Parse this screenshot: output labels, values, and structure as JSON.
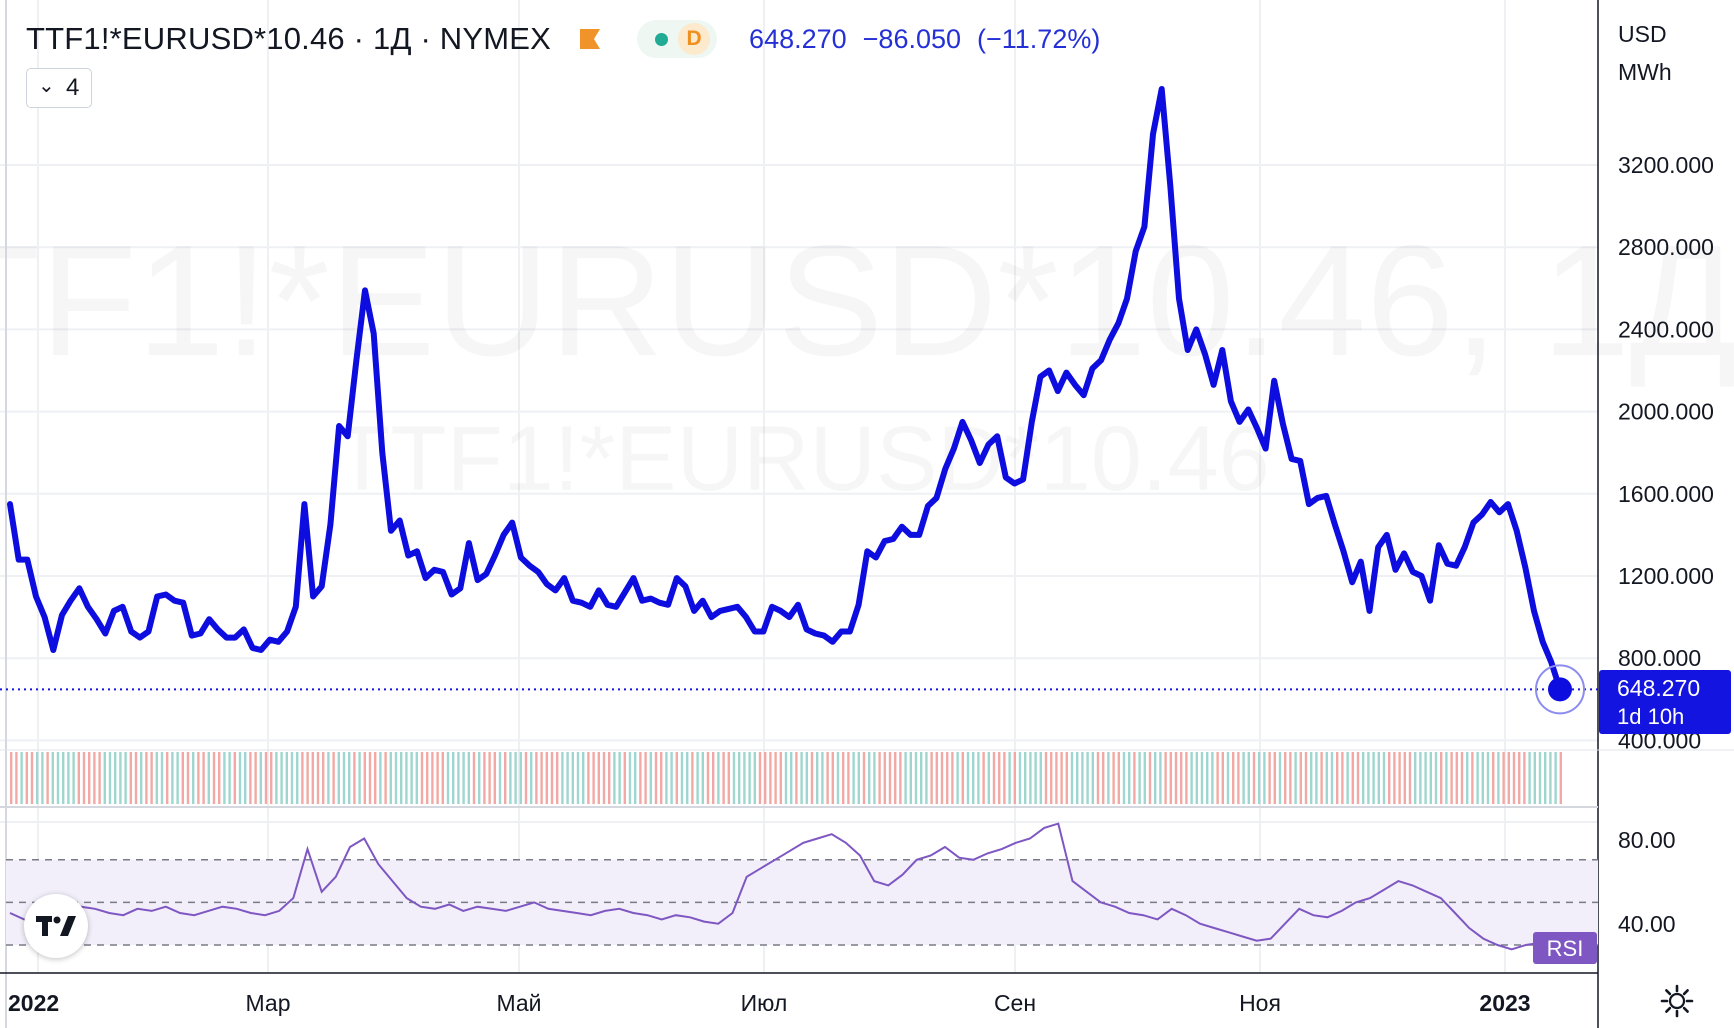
{
  "header": {
    "symbol": "TTF1!*EURUSD*10.46 · 1Д · NYMEX",
    "last": "648.270",
    "change": "−86.050",
    "change_pct": "(−11.72%)",
    "timeframe_badge": "D",
    "collapse_count": "4"
  },
  "watermark": {
    "large": "TTF1!*EURUSD*10.46, 1Д",
    "small": "TTF1!*EURUSD*10.46"
  },
  "price_axis": {
    "unit_lines": [
      "USD",
      "MWh"
    ],
    "ticks": [
      "3200.000",
      "2800.000",
      "2400.000",
      "2000.000",
      "1600.000",
      "1200.000",
      "800.000",
      "400.000"
    ],
    "last_label": "648.270",
    "countdown": "1d 10h"
  },
  "rsi_axis": {
    "ticks": [
      "80.00",
      "40.00"
    ],
    "badge": "RSI"
  },
  "time_axis": {
    "labels": [
      "2022",
      "Мар",
      "Май",
      "Июл",
      "Сен",
      "Ноя",
      "2023"
    ]
  },
  "colors": {
    "price_line": "#0d0ddf",
    "rsi_line": "#7e57c2",
    "rsi_band": "#f2effa",
    "volume_up": "#9fd6cf",
    "volume_down": "#f2a9a5",
    "last_price_badge": "#1414e0",
    "rsi_badge": "#7e57c2"
  },
  "icons": [
    "tradingview-logo-icon",
    "flag-icon",
    "chevron-down-icon",
    "settings-gear-icon"
  ],
  "chart_data": [
    {
      "type": "line",
      "title": "TTF1!*EURUSD*10.46 · 1Д · NYMEX",
      "ylabel": "USD MWh",
      "ylim": [
        350,
        3750
      ],
      "x_range": [
        "2022-01-03",
        "2023-01-05"
      ],
      "x_labels": [
        "2022",
        "Мар",
        "Май",
        "Июл",
        "Сен",
        "Ноя",
        "2023"
      ],
      "grid": true,
      "series": [
        {
          "points": [
            [
              "2022-01-03",
              1550
            ],
            [
              "2022-01-04",
              1280
            ],
            [
              "2022-01-05",
              1280
            ],
            [
              "2022-01-07",
              1100
            ],
            [
              "2022-01-09",
              1000
            ],
            [
              "2022-01-11",
              840
            ],
            [
              "2022-01-14",
              1010
            ],
            [
              "2022-01-17",
              1080
            ],
            [
              "2022-01-20",
              1140
            ],
            [
              "2022-01-22",
              1050
            ],
            [
              "2022-01-25",
              990
            ],
            [
              "2022-01-27",
              920
            ],
            [
              "2022-01-29",
              1030
            ],
            [
              "2022-01-31",
              1050
            ],
            [
              "2022-02-02",
              930
            ],
            [
              "2022-02-04",
              900
            ],
            [
              "2022-02-06",
              930
            ],
            [
              "2022-02-09",
              1100
            ],
            [
              "2022-02-11",
              1110
            ],
            [
              "2022-02-13",
              1080
            ],
            [
              "2022-02-16",
              1070
            ],
            [
              "2022-02-19",
              910
            ],
            [
              "2022-02-21",
              920
            ],
            [
              "2022-02-24",
              990
            ],
            [
              "2022-02-27",
              940
            ],
            [
              "2022-03-02",
              900
            ],
            [
              "2022-03-04",
              900
            ],
            [
              "2022-03-06",
              940
            ],
            [
              "2022-03-08",
              850
            ],
            [
              "2022-03-10",
              840
            ],
            [
              "2022-03-12",
              890
            ],
            [
              "2022-03-14",
              880
            ],
            [
              "2022-03-16",
              930
            ],
            [
              "2022-03-19",
              1050
            ],
            [
              "2022-03-21",
              1550
            ],
            [
              "2022-03-23",
              1100
            ],
            [
              "2022-03-25",
              1150
            ],
            [
              "2022-03-27",
              1450
            ],
            [
              "2022-03-29",
              1930
            ],
            [
              "2022-03-31",
              1880
            ],
            [
              "2022-04-02",
              2250
            ],
            [
              "2022-04-04",
              2590
            ],
            [
              "2022-04-06",
              2380
            ],
            [
              "2022-04-08",
              1800
            ],
            [
              "2022-04-10",
              1420
            ],
            [
              "2022-04-12",
              1470
            ],
            [
              "2022-04-14",
              1300
            ],
            [
              "2022-04-16",
              1320
            ],
            [
              "2022-04-18",
              1190
            ],
            [
              "2022-04-20",
              1230
            ],
            [
              "2022-04-22",
              1220
            ],
            [
              "2022-04-24",
              1110
            ],
            [
              "2022-04-26",
              1140
            ],
            [
              "2022-04-28",
              1360
            ],
            [
              "2022-04-30",
              1180
            ],
            [
              "2022-05-02",
              1210
            ],
            [
              "2022-05-04",
              1300
            ],
            [
              "2022-05-06",
              1400
            ],
            [
              "2022-05-08",
              1460
            ],
            [
              "2022-05-10",
              1290
            ],
            [
              "2022-05-13",
              1250
            ],
            [
              "2022-05-17",
              1220
            ],
            [
              "2022-05-20",
              1160
            ],
            [
              "2022-05-23",
              1130
            ],
            [
              "2022-05-26",
              1190
            ],
            [
              "2022-05-28",
              1080
            ],
            [
              "2022-05-31",
              1070
            ],
            [
              "2022-06-02",
              1050
            ],
            [
              "2022-06-04",
              1130
            ],
            [
              "2022-06-06",
              1060
            ],
            [
              "2022-06-08",
              1050
            ],
            [
              "2022-06-10",
              1120
            ],
            [
              "2022-06-12",
              1190
            ],
            [
              "2022-06-14",
              1080
            ],
            [
              "2022-06-17",
              1090
            ],
            [
              "2022-06-20",
              1070
            ],
            [
              "2022-06-22",
              1060
            ],
            [
              "2022-06-24",
              1190
            ],
            [
              "2022-06-26",
              1150
            ],
            [
              "2022-06-28",
              1030
            ],
            [
              "2022-06-30",
              1080
            ],
            [
              "2022-07-02",
              1000
            ],
            [
              "2022-07-04",
              1030
            ],
            [
              "2022-07-06",
              1040
            ],
            [
              "2022-07-08",
              1050
            ],
            [
              "2022-07-10",
              1000
            ],
            [
              "2022-07-12",
              930
            ],
            [
              "2022-07-14",
              930
            ],
            [
              "2022-07-16",
              1050
            ],
            [
              "2022-07-18",
              1030
            ],
            [
              "2022-07-20",
              1000
            ],
            [
              "2022-07-22",
              1060
            ],
            [
              "2022-07-24",
              940
            ],
            [
              "2022-07-26",
              920
            ],
            [
              "2022-07-28",
              910
            ],
            [
              "2022-07-30",
              880
            ],
            [
              "2022-08-01",
              930
            ],
            [
              "2022-08-03",
              930
            ],
            [
              "2022-08-05",
              1060
            ],
            [
              "2022-08-07",
              1320
            ],
            [
              "2022-08-09",
              1290
            ],
            [
              "2022-08-11",
              1370
            ],
            [
              "2022-08-13",
              1380
            ],
            [
              "2022-08-15",
              1440
            ],
            [
              "2022-08-17",
              1400
            ],
            [
              "2022-08-19",
              1400
            ],
            [
              "2022-08-21",
              1540
            ],
            [
              "2022-08-23",
              1580
            ],
            [
              "2022-08-25",
              1720
            ],
            [
              "2022-08-27",
              1820
            ],
            [
              "2022-08-29",
              1950
            ],
            [
              "2022-08-31",
              1860
            ],
            [
              "2022-09-02",
              1750
            ],
            [
              "2022-09-04",
              1840
            ],
            [
              "2022-09-06",
              1880
            ],
            [
              "2022-09-08",
              1680
            ],
            [
              "2022-09-12",
              1650
            ],
            [
              "2022-09-15",
              1670
            ],
            [
              "2022-09-17",
              1950
            ],
            [
              "2022-09-19",
              2170
            ],
            [
              "2022-09-21",
              2200
            ],
            [
              "2022-09-23",
              2100
            ],
            [
              "2022-09-25",
              2190
            ],
            [
              "2022-09-27",
              2130
            ],
            [
              "2022-09-30",
              2080
            ],
            [
              "2022-10-02",
              2210
            ],
            [
              "2022-10-04",
              2250
            ],
            [
              "2022-10-06",
              2350
            ],
            [
              "2022-10-08",
              2430
            ],
            [
              "2022-10-10",
              2550
            ],
            [
              "2022-10-12",
              2780
            ],
            [
              "2022-10-14",
              2900
            ],
            [
              "2022-10-16",
              3350
            ],
            [
              "2022-10-18",
              3570
            ],
            [
              "2022-10-20",
              3100
            ],
            [
              "2022-10-22",
              2550
            ],
            [
              "2022-10-24",
              2300
            ],
            [
              "2022-10-26",
              2400
            ],
            [
              "2022-10-28",
              2280
            ],
            [
              "2022-10-30",
              2130
            ],
            [
              "2022-11-01",
              2300
            ],
            [
              "2022-11-03",
              2050
            ],
            [
              "2022-11-05",
              1950
            ],
            [
              "2022-11-07",
              2010
            ],
            [
              "2022-11-09",
              1920
            ],
            [
              "2022-11-11",
              1820
            ],
            [
              "2022-11-13",
              2150
            ],
            [
              "2022-11-15",
              1940
            ],
            [
              "2022-11-17",
              1770
            ],
            [
              "2022-11-19",
              1760
            ],
            [
              "2022-11-21",
              1550
            ],
            [
              "2022-11-23",
              1580
            ],
            [
              "2022-11-25",
              1590
            ],
            [
              "2022-11-27",
              1450
            ],
            [
              "2022-11-29",
              1320
            ],
            [
              "2022-12-01",
              1170
            ],
            [
              "2022-12-03",
              1270
            ],
            [
              "2022-12-05",
              1030
            ],
            [
              "2022-12-07",
              1340
            ],
            [
              "2022-12-09",
              1400
            ],
            [
              "2022-12-11",
              1230
            ],
            [
              "2022-12-13",
              1310
            ],
            [
              "2022-12-15",
              1220
            ],
            [
              "2022-12-17",
              1200
            ],
            [
              "2022-12-19",
              1080
            ],
            [
              "2022-12-21",
              1350
            ],
            [
              "2022-12-23",
              1260
            ],
            [
              "2022-12-25",
              1250
            ],
            [
              "2022-12-27",
              1340
            ],
            [
              "2022-12-29",
              1460
            ],
            [
              "2022-12-30",
              1500
            ],
            [
              "2022-12-31",
              1560
            ],
            [
              "2023-01-01",
              1510
            ],
            [
              "2023-01-02",
              1550
            ],
            [
              "2023-01-03",
              1420
            ],
            [
              "2023-01-04",
              1240
            ],
            [
              "2023-01-04",
              1030
            ],
            [
              "2023-01-05",
              880
            ],
            [
              "2023-01-05",
              780
            ],
            [
              "2023-01-05",
              648.27
            ]
          ]
        }
      ]
    },
    {
      "type": "line",
      "title": "RSI",
      "ylim": [
        15,
        100
      ],
      "levels": [
        70,
        50,
        30
      ],
      "y_ticks": [
        "80.00",
        "40.00"
      ],
      "series": [
        {
          "values": [
            45,
            42,
            40,
            44,
            46,
            48,
            47,
            45,
            44,
            47,
            46,
            48,
            45,
            44,
            46,
            48,
            47,
            45,
            44,
            46,
            52,
            75,
            55,
            62,
            76,
            80,
            68,
            60,
            52,
            48,
            47,
            49,
            46,
            48,
            47,
            46,
            48,
            50,
            47,
            46,
            45,
            44,
            46,
            47,
            45,
            44,
            42,
            44,
            43,
            41,
            40,
            45,
            62,
            66,
            70,
            74,
            78,
            80,
            82,
            78,
            72,
            60,
            58,
            63,
            70,
            72,
            76,
            71,
            70,
            73,
            75,
            78,
            80,
            85,
            87,
            60,
            55,
            50,
            48,
            45,
            44,
            42,
            47,
            44,
            40,
            38,
            36,
            34,
            32,
            33,
            40,
            47,
            44,
            43,
            46,
            50,
            52,
            56,
            60,
            58,
            55,
            52,
            45,
            38,
            33,
            30,
            28,
            30,
            31
          ]
        }
      ]
    }
  ]
}
